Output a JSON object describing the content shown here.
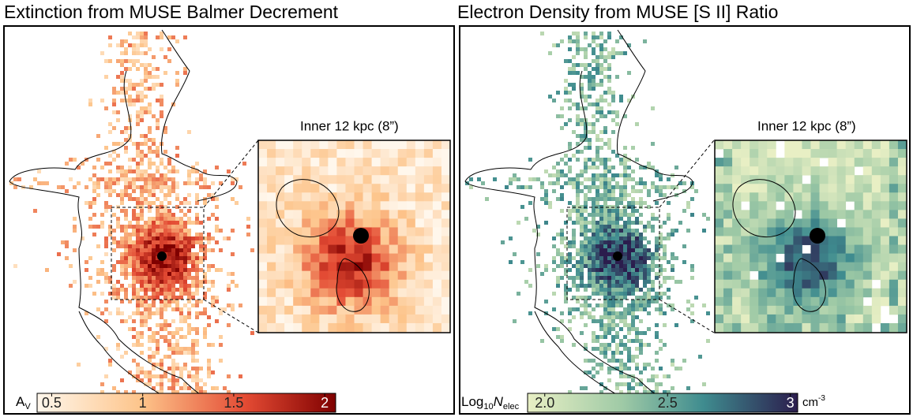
{
  "panels": [
    {
      "title": "Extinction from MUSE Balmer Decrement",
      "inset_label": "Inner 12 kpc (8”)",
      "colorbar": {
        "label": [
          "A",
          "V"
        ],
        "range": [
          0.42,
          2.06
        ],
        "ticks": [
          0.5,
          1,
          1.5,
          2
        ]
      }
    },
    {
      "title": "Electron Density from MUSE [S II] Ratio",
      "inset_label": "Inner 12 kpc (8”)",
      "colorbar": {
        "label": [
          "Log",
          "10",
          "N",
          "elec"
        ],
        "range": [
          1.93,
          3.03
        ],
        "ticks": [
          {
            "value": 2,
            "label": "2.0"
          },
          2.5,
          3
        ],
        "unit": [
          "cm",
          "-3"
        ]
      }
    }
  ]
}
